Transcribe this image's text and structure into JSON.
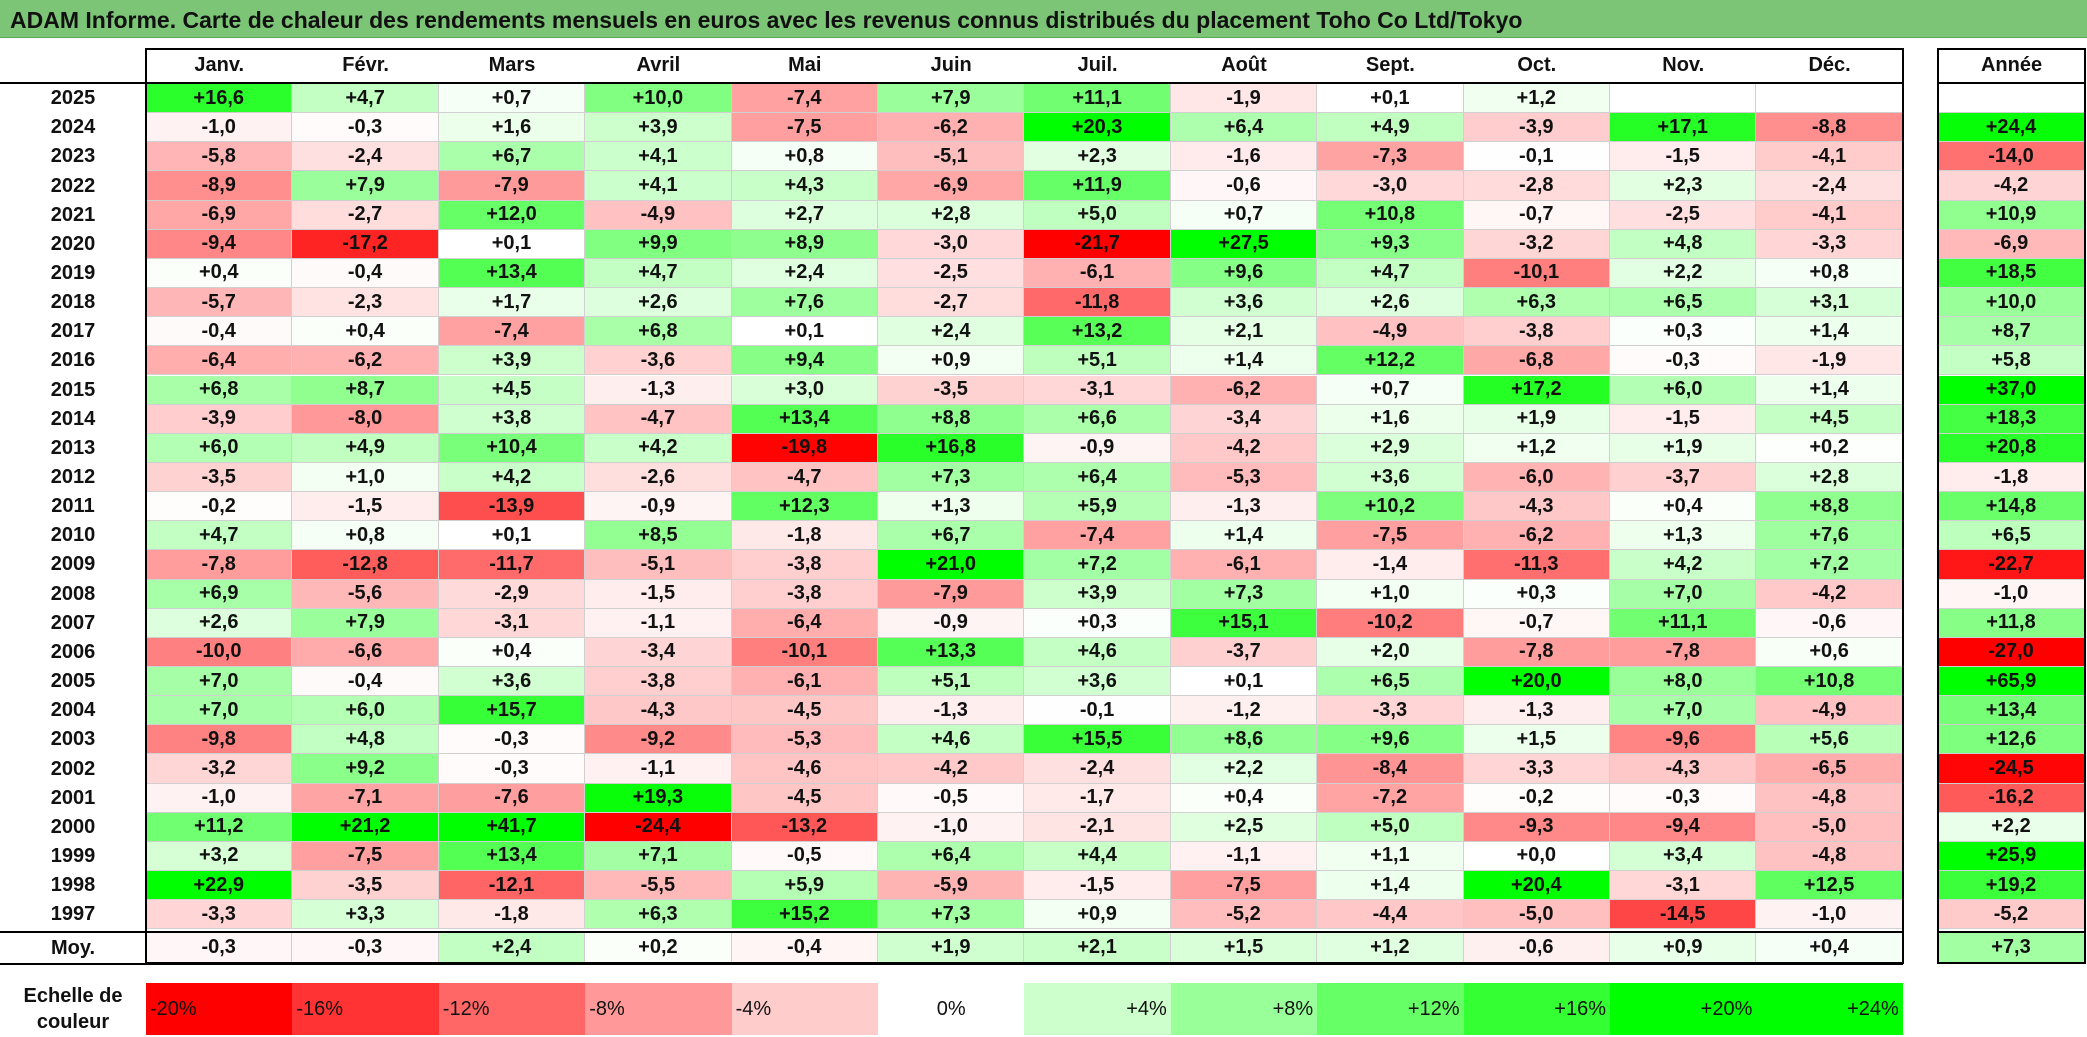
{
  "title": "ADAM Informe. Carte de chaleur des rendements mensuels en euros avec les revenus connus distribués du placement Toho Co Ltd/Tokyo",
  "chart_data": {
    "type": "heatmap",
    "title": "ADAM Informe. Carte de chaleur des rendements mensuels en euros avec les revenus connus distribués du placement Toho Co Ltd/Tokyo",
    "months": [
      "Janv.",
      "Févr.",
      "Mars",
      "Avril",
      "Mai",
      "Juin",
      "Juil.",
      "Août",
      "Sept.",
      "Oct.",
      "Nov.",
      "Déc."
    ],
    "annual_header": "Année",
    "average_label": "Moy.",
    "rows": [
      {
        "year": "2025",
        "values": [
          "+16,6",
          "+4,7",
          "+0,7",
          "+10,0",
          "-7,4",
          "+7,9",
          "+11,1",
          "-1,9",
          "+0,1",
          "+1,2",
          "",
          ""
        ],
        "annual": ""
      },
      {
        "year": "2024",
        "values": [
          "-1,0",
          "-0,3",
          "+1,6",
          "+3,9",
          "-7,5",
          "-6,2",
          "+20,3",
          "+6,4",
          "+4,9",
          "-3,9",
          "+17,1",
          "-8,8"
        ],
        "annual": "+24,4"
      },
      {
        "year": "2023",
        "values": [
          "-5,8",
          "-2,4",
          "+6,7",
          "+4,1",
          "+0,8",
          "-5,1",
          "+2,3",
          "-1,6",
          "-7,3",
          "-0,1",
          "-1,5",
          "-4,1"
        ],
        "annual": "-14,0"
      },
      {
        "year": "2022",
        "values": [
          "-8,9",
          "+7,9",
          "-7,9",
          "+4,1",
          "+4,3",
          "-6,9",
          "+11,9",
          "-0,6",
          "-3,0",
          "-2,8",
          "+2,3",
          "-2,4"
        ],
        "annual": "-4,2"
      },
      {
        "year": "2021",
        "values": [
          "-6,9",
          "-2,7",
          "+12,0",
          "-4,9",
          "+2,7",
          "+2,8",
          "+5,0",
          "+0,7",
          "+10,8",
          "-0,7",
          "-2,5",
          "-4,1"
        ],
        "annual": "+10,9"
      },
      {
        "year": "2020",
        "values": [
          "-9,4",
          "-17,2",
          "+0,1",
          "+9,9",
          "+8,9",
          "-3,0",
          "-21,7",
          "+27,5",
          "+9,3",
          "-3,2",
          "+4,8",
          "-3,3"
        ],
        "annual": "-6,9"
      },
      {
        "year": "2019",
        "values": [
          "+0,4",
          "-0,4",
          "+13,4",
          "+4,7",
          "+2,4",
          "-2,5",
          "-6,1",
          "+9,6",
          "+4,7",
          "-10,1",
          "+2,2",
          "+0,8"
        ],
        "annual": "+18,5"
      },
      {
        "year": "2018",
        "values": [
          "-5,7",
          "-2,3",
          "+1,7",
          "+2,6",
          "+7,6",
          "-2,7",
          "-11,8",
          "+3,6",
          "+2,6",
          "+6,3",
          "+6,5",
          "+3,1"
        ],
        "annual": "+10,0"
      },
      {
        "year": "2017",
        "values": [
          "-0,4",
          "+0,4",
          "-7,4",
          "+6,8",
          "+0,1",
          "+2,4",
          "+13,2",
          "+2,1",
          "-4,9",
          "-3,8",
          "+0,3",
          "+1,4"
        ],
        "annual": "+8,7"
      },
      {
        "year": "2016",
        "values": [
          "-6,4",
          "-6,2",
          "+3,9",
          "-3,6",
          "+9,4",
          "+0,9",
          "+5,1",
          "+1,4",
          "+12,2",
          "-6,8",
          "-0,3",
          "-1,9"
        ],
        "annual": "+5,8"
      },
      {
        "year": "2015",
        "values": [
          "+6,8",
          "+8,7",
          "+4,5",
          "-1,3",
          "+3,0",
          "-3,5",
          "-3,1",
          "-6,2",
          "+0,7",
          "+17,2",
          "+6,0",
          "+1,4"
        ],
        "annual": "+37,0"
      },
      {
        "year": "2014",
        "values": [
          "-3,9",
          "-8,0",
          "+3,8",
          "-4,7",
          "+13,4",
          "+8,8",
          "+6,6",
          "-3,4",
          "+1,6",
          "+1,9",
          "-1,5",
          "+4,5"
        ],
        "annual": "+18,3"
      },
      {
        "year": "2013",
        "values": [
          "+6,0",
          "+4,9",
          "+10,4",
          "+4,2",
          "-19,8",
          "+16,8",
          "-0,9",
          "-4,2",
          "+2,9",
          "+1,2",
          "+1,9",
          "+0,2"
        ],
        "annual": "+20,8"
      },
      {
        "year": "2012",
        "values": [
          "-3,5",
          "+1,0",
          "+4,2",
          "-2,6",
          "-4,7",
          "+7,3",
          "+6,4",
          "-5,3",
          "+3,6",
          "-6,0",
          "-3,7",
          "+2,8"
        ],
        "annual": "-1,8"
      },
      {
        "year": "2011",
        "values": [
          "-0,2",
          "-1,5",
          "-13,9",
          "-0,9",
          "+12,3",
          "+1,3",
          "+5,9",
          "-1,3",
          "+10,2",
          "-4,3",
          "+0,4",
          "+8,8"
        ],
        "annual": "+14,8"
      },
      {
        "year": "2010",
        "values": [
          "+4,7",
          "+0,8",
          "+0,1",
          "+8,5",
          "-1,8",
          "+6,7",
          "-7,4",
          "+1,4",
          "-7,5",
          "-6,2",
          "+1,3",
          "+7,6"
        ],
        "annual": "+6,5"
      },
      {
        "year": "2009",
        "values": [
          "-7,8",
          "-12,8",
          "-11,7",
          "-5,1",
          "-3,8",
          "+21,0",
          "+7,2",
          "-6,1",
          "-1,4",
          "-11,3",
          "+4,2",
          "+7,2"
        ],
        "annual": "-22,7"
      },
      {
        "year": "2008",
        "values": [
          "+6,9",
          "-5,6",
          "-2,9",
          "-1,5",
          "-3,8",
          "-7,9",
          "+3,9",
          "+7,3",
          "+1,0",
          "+0,3",
          "+7,0",
          "-4,2"
        ],
        "annual": "-1,0"
      },
      {
        "year": "2007",
        "values": [
          "+2,6",
          "+7,9",
          "-3,1",
          "-1,1",
          "-6,4",
          "-0,9",
          "+0,3",
          "+15,1",
          "-10,2",
          "-0,7",
          "+11,1",
          "-0,6"
        ],
        "annual": "+11,8"
      },
      {
        "year": "2006",
        "values": [
          "-10,0",
          "-6,6",
          "+0,4",
          "-3,4",
          "-10,1",
          "+13,3",
          "+4,6",
          "-3,7",
          "+2,0",
          "-7,8",
          "-7,8",
          "+0,6"
        ],
        "annual": "-27,0"
      },
      {
        "year": "2005",
        "values": [
          "+7,0",
          "-0,4",
          "+3,6",
          "-3,8",
          "-6,1",
          "+5,1",
          "+3,6",
          "+0,1",
          "+6,5",
          "+20,0",
          "+8,0",
          "+10,8"
        ],
        "annual": "+65,9"
      },
      {
        "year": "2004",
        "values": [
          "+7,0",
          "+6,0",
          "+15,7",
          "-4,3",
          "-4,5",
          "-1,3",
          "-0,1",
          "-1,2",
          "-3,3",
          "-1,3",
          "+7,0",
          "-4,9"
        ],
        "annual": "+13,4"
      },
      {
        "year": "2003",
        "values": [
          "-9,8",
          "+4,8",
          "-0,3",
          "-9,2",
          "-5,3",
          "+4,6",
          "+15,5",
          "+8,6",
          "+9,6",
          "+1,5",
          "-9,6",
          "+5,6"
        ],
        "annual": "+12,6"
      },
      {
        "year": "2002",
        "values": [
          "-3,2",
          "+9,2",
          "-0,3",
          "-1,1",
          "-4,6",
          "-4,2",
          "-2,4",
          "+2,2",
          "-8,4",
          "-3,3",
          "-4,3",
          "-6,5"
        ],
        "annual": "-24,5"
      },
      {
        "year": "2001",
        "values": [
          "-1,0",
          "-7,1",
          "-7,6",
          "+19,3",
          "-4,5",
          "-0,5",
          "-1,7",
          "+0,4",
          "-7,2",
          "-0,2",
          "-0,3",
          "-4,8"
        ],
        "annual": "-16,2"
      },
      {
        "year": "2000",
        "values": [
          "+11,2",
          "+21,2",
          "+41,7",
          "-24,4",
          "-13,2",
          "-1,0",
          "-2,1",
          "+2,5",
          "+5,0",
          "-9,3",
          "-9,4",
          "-5,0"
        ],
        "annual": "+2,2"
      },
      {
        "year": "1999",
        "values": [
          "+3,2",
          "-7,5",
          "+13,4",
          "+7,1",
          "-0,5",
          "+6,4",
          "+4,4",
          "-1,1",
          "+1,1",
          "+0,0",
          "+3,4",
          "-4,8"
        ],
        "annual": "+25,9"
      },
      {
        "year": "1998",
        "values": [
          "+22,9",
          "-3,5",
          "-12,1",
          "-5,5",
          "+5,9",
          "-5,9",
          "-1,5",
          "-7,5",
          "+1,4",
          "+20,4",
          "-3,1",
          "+12,5"
        ],
        "annual": "+19,2"
      },
      {
        "year": "1997",
        "values": [
          "-3,3",
          "+3,3",
          "-1,8",
          "+6,3",
          "+15,2",
          "+7,3",
          "+0,9",
          "-5,2",
          "-4,4",
          "-5,0",
          "-14,5",
          "-1,0"
        ],
        "annual": "-5,2"
      }
    ],
    "average": {
      "values": [
        "-0,3",
        "-0,3",
        "+2,4",
        "+0,2",
        "-0,4",
        "+1,9",
        "+2,1",
        "+1,5",
        "+1,2",
        "-0,6",
        "+0,9",
        "+0,4"
      ],
      "annual": "+7,3"
    },
    "scale": {
      "label_line1": "Echelle de",
      "label_line2": "couleur",
      "steps": [
        {
          "label": "-20%",
          "value": -20,
          "color": "#ff0000",
          "align": "left"
        },
        {
          "label": "-16%",
          "value": -16,
          "color": "#ff3333",
          "align": "left"
        },
        {
          "label": "-12%",
          "value": -12,
          "color": "#ff6666",
          "align": "left"
        },
        {
          "label": "-8%",
          "value": -8,
          "color": "#ff9999",
          "align": "left"
        },
        {
          "label": "-4%",
          "value": -4,
          "color": "#ffcccc",
          "align": "left"
        },
        {
          "label": "0%",
          "value": 0,
          "color": "#ffffff",
          "align": "center"
        },
        {
          "label": "+4%",
          "value": 4,
          "color": "#ccffcc",
          "align": "right"
        },
        {
          "label": "+8%",
          "value": 8,
          "color": "#99ff99",
          "align": "right"
        },
        {
          "label": "+12%",
          "value": 12,
          "color": "#66ff66",
          "align": "right"
        },
        {
          "label": "+16%",
          "value": 16,
          "color": "#33ff33",
          "align": "right"
        },
        {
          "label": "+20%",
          "value": 20,
          "color": "#00ff00",
          "align": "right"
        },
        {
          "label": "+24%",
          "value": 24,
          "color": "#00ff00",
          "align": "right"
        }
      ]
    },
    "colors": {
      "negative_max": "#ff0000",
      "neutral": "#ffffff",
      "positive_max": "#00ff00",
      "title_bar": "#7cc576"
    }
  }
}
